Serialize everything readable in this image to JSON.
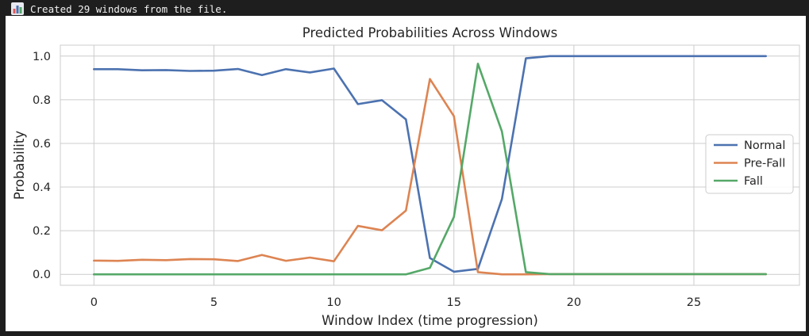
{
  "output": {
    "log_text": "Created 29 windows from the file.",
    "log_icon": "bar-chart-icon"
  },
  "chart_data": {
    "type": "line",
    "title": "Predicted Probabilities Across Windows",
    "xlabel": "Window Index (time progression)",
    "ylabel": "Probability",
    "x": [
      0,
      1,
      2,
      3,
      4,
      5,
      6,
      7,
      8,
      9,
      10,
      11,
      12,
      13,
      14,
      15,
      16,
      17,
      18,
      19,
      20,
      21,
      22,
      23,
      24,
      25,
      26,
      27,
      28
    ],
    "xlim": [
      -1.4,
      29.4
    ],
    "ylim": [
      -0.05,
      1.05
    ],
    "xticks": [
      0,
      5,
      10,
      15,
      20,
      25
    ],
    "xtick_labels": [
      "0",
      "5",
      "10",
      "15",
      "20",
      "25"
    ],
    "yticks": [
      0.0,
      0.2,
      0.4,
      0.6,
      0.8,
      1.0
    ],
    "ytick_labels": [
      "0.0",
      "0.2",
      "0.4",
      "0.6",
      "0.8",
      "1.0"
    ],
    "grid": true,
    "legend_position": "center-right",
    "series": [
      {
        "name": "Normal",
        "color": "#4c72b0",
        "values": [
          0.94,
          0.94,
          0.935,
          0.936,
          0.932,
          0.933,
          0.941,
          0.913,
          0.94,
          0.925,
          0.943,
          0.78,
          0.798,
          0.71,
          0.075,
          0.012,
          0.025,
          0.345,
          0.99,
          1.0,
          1.0,
          1.0,
          1.0,
          1.0,
          1.0,
          1.0,
          1.0,
          1.0,
          1.0
        ]
      },
      {
        "name": "Pre-Fall",
        "color": "#dd8452",
        "values": [
          0.063,
          0.062,
          0.067,
          0.065,
          0.07,
          0.069,
          0.061,
          0.089,
          0.062,
          0.077,
          0.06,
          0.222,
          0.202,
          0.292,
          0.895,
          0.725,
          0.01,
          0.0,
          0.0,
          0.001,
          0.001,
          0.001,
          0.001,
          0.001,
          0.001,
          0.001,
          0.001,
          0.001,
          0.001
        ]
      },
      {
        "name": "Fall",
        "color": "#55a868",
        "values": [
          0.0,
          0.0,
          0.0,
          0.0,
          0.0,
          0.0,
          0.0,
          0.0,
          0.0,
          0.0,
          0.0,
          0.0,
          0.0,
          0.0,
          0.03,
          0.263,
          0.965,
          0.655,
          0.01,
          0.001,
          0.001,
          0.001,
          0.001,
          0.001,
          0.001,
          0.001,
          0.001,
          0.001,
          0.001
        ]
      }
    ]
  }
}
